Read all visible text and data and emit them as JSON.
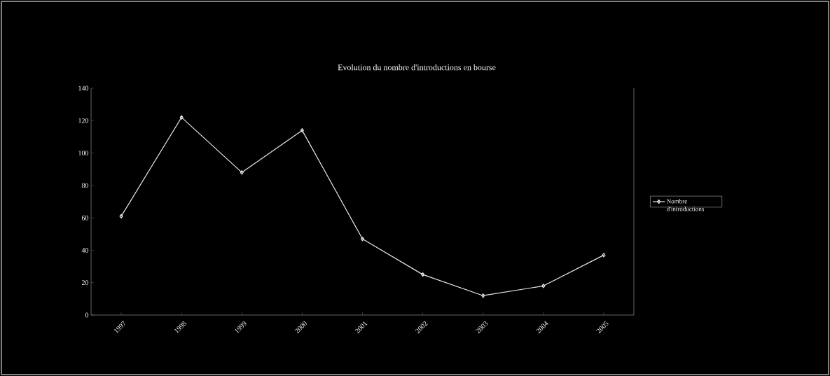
{
  "chart_data": {
    "type": "line",
    "title": "Evolution du nombre d'introductions en bourse",
    "categories": [
      "1997",
      "1998",
      "1999",
      "2000",
      "2001",
      "2002",
      "2003",
      "2004",
      "2005"
    ],
    "series": [
      {
        "name": "Nombre d'introductions",
        "color": "#e8e8e8",
        "values": [
          61,
          122,
          88,
          114,
          47,
          25,
          12,
          18,
          37
        ]
      }
    ],
    "ylim": [
      0,
      140
    ],
    "yticks": [
      0,
      20,
      40,
      60,
      80,
      100,
      120,
      140
    ],
    "grid": false,
    "legend": "right",
    "marker": "diamond",
    "line_style": "solid"
  }
}
